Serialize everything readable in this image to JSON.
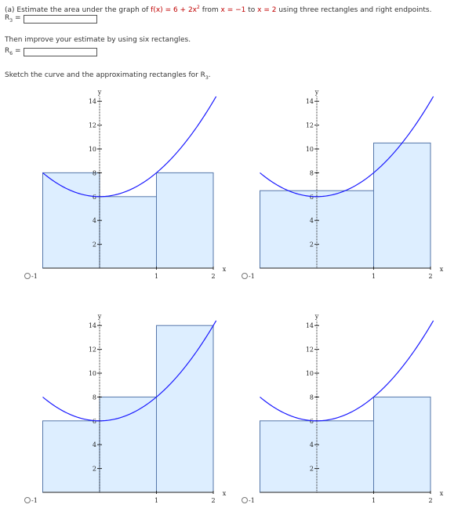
{
  "question": {
    "part_a_prefix": "(a) Estimate the area under the graph of ",
    "func_name": "f(x)",
    "func_eq": " = 6 + 2x",
    "func_exp": "2",
    "from_text": " from ",
    "x_start": "x = −1",
    "to_text": " to ",
    "x_end": "x = 2",
    "suffix": " using three rectangles and right endpoints."
  },
  "answer_r3": {
    "label": "R",
    "sub": "3",
    "eq": " =",
    "value": ""
  },
  "improve_text": "Then improve your estimate by using six rectangles.",
  "answer_r6": {
    "label": "R",
    "sub": "6",
    "eq": " =",
    "value": ""
  },
  "sketch_text_prefix": "Sketch the curve and the approximating rectangles for R",
  "sketch_text_sub": "3",
  "sketch_text_suffix": ".",
  "colors": {
    "curve": "#1a1aff",
    "rect_fill": "#ddeeff",
    "rect_stroke": "#5577aa",
    "axis": "#222222"
  },
  "chart_data": [
    {
      "type": "line",
      "xlabel": "x",
      "ylabel": "y",
      "xlim": [
        -1,
        2
      ],
      "ylim": [
        0,
        14
      ],
      "x_ticks": [
        "-1",
        "1",
        "2"
      ],
      "y_ticks": [
        "2",
        "4",
        "6",
        "8",
        "10",
        "12",
        "14"
      ],
      "curve": "6 + 2x^2",
      "rectangles": [
        {
          "x0": -1,
          "x1": 0,
          "h": 8
        },
        {
          "x0": 0,
          "x1": 1,
          "h": 6
        },
        {
          "x0": 1,
          "x1": 2,
          "h": 8
        }
      ]
    },
    {
      "type": "line",
      "xlabel": "x",
      "ylabel": "y",
      "xlim": [
        -1,
        2
      ],
      "ylim": [
        0,
        14
      ],
      "x_ticks": [
        "-1",
        "1",
        "2"
      ],
      "y_ticks": [
        "2",
        "4",
        "6",
        "8",
        "10",
        "12",
        "14"
      ],
      "curve": "6 + 2x^2",
      "rectangles": [
        {
          "x0": -1,
          "x1": 1,
          "h": 6.5
        },
        {
          "x0": 1,
          "x1": 2,
          "h": 10.5
        }
      ]
    },
    {
      "type": "line",
      "xlabel": "x",
      "ylabel": "y",
      "xlim": [
        -1,
        2
      ],
      "ylim": [
        0,
        14
      ],
      "x_ticks": [
        "-1",
        "1",
        "2"
      ],
      "y_ticks": [
        "2",
        "4",
        "6",
        "8",
        "10",
        "12",
        "14"
      ],
      "curve": "6 + 2x^2",
      "rectangles": [
        {
          "x0": -1,
          "x1": 0,
          "h": 6
        },
        {
          "x0": 0,
          "x1": 1,
          "h": 8
        },
        {
          "x0": 1,
          "x1": 2,
          "h": 14
        }
      ]
    },
    {
      "type": "line",
      "xlabel": "x",
      "ylabel": "y",
      "xlim": [
        -1,
        2
      ],
      "ylim": [
        0,
        14
      ],
      "x_ticks": [
        "-1",
        "1",
        "2"
      ],
      "y_ticks": [
        "2",
        "4",
        "6",
        "8",
        "10",
        "12",
        "14"
      ],
      "curve": "6 + 2x^2",
      "rectangles": [
        {
          "x0": -1,
          "x1": 1,
          "h": 6
        },
        {
          "x0": 1,
          "x1": 2,
          "h": 8
        }
      ]
    }
  ]
}
